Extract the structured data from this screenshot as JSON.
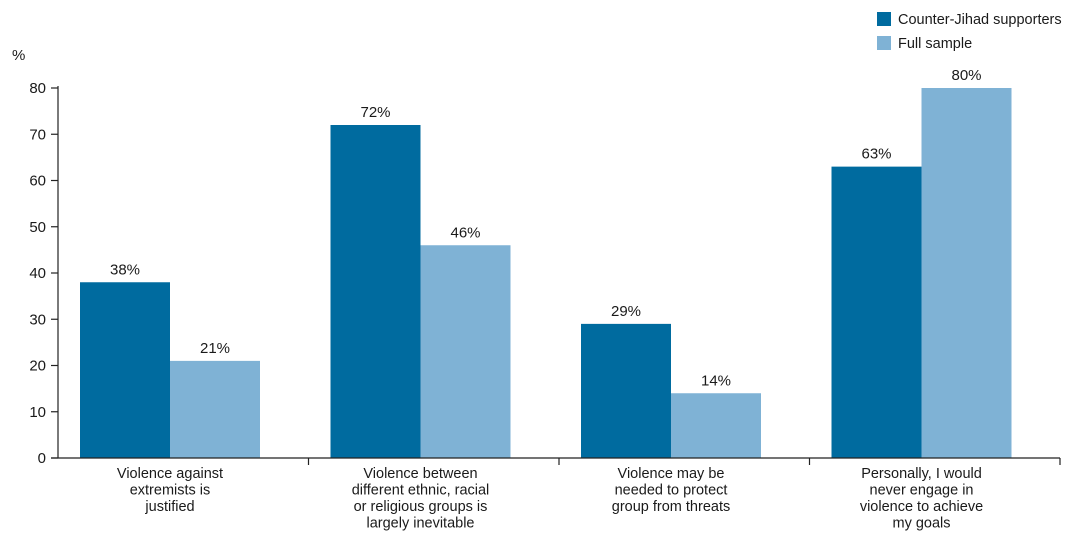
{
  "chart_data": {
    "type": "bar",
    "unit_label": "%",
    "ylim": [
      0,
      80
    ],
    "yticks": [
      0,
      10,
      20,
      30,
      40,
      50,
      60,
      70,
      80
    ],
    "grid": false,
    "legend_position": "top-right",
    "categories": [
      [
        "Violence against",
        "extremists is",
        "justified"
      ],
      [
        "Violence between",
        "different ethnic, racial",
        "or religious groups is",
        "largely inevitable"
      ],
      [
        "Violence may be",
        "needed to protect",
        "group from threats"
      ],
      [
        "Personally, I would",
        "never engage in",
        "violence to achieve",
        "my goals"
      ]
    ],
    "series": [
      {
        "name": "Counter-Jihad supporters",
        "color": "#006b9f",
        "values": [
          38,
          72,
          29,
          63
        ],
        "labels": [
          "38%",
          "72%",
          "29%",
          "63%"
        ]
      },
      {
        "name": "Full sample",
        "color": "#7fb2d5",
        "values": [
          21,
          46,
          14,
          80
        ],
        "labels": [
          "21%",
          "46%",
          "14%",
          "80%"
        ]
      }
    ]
  }
}
